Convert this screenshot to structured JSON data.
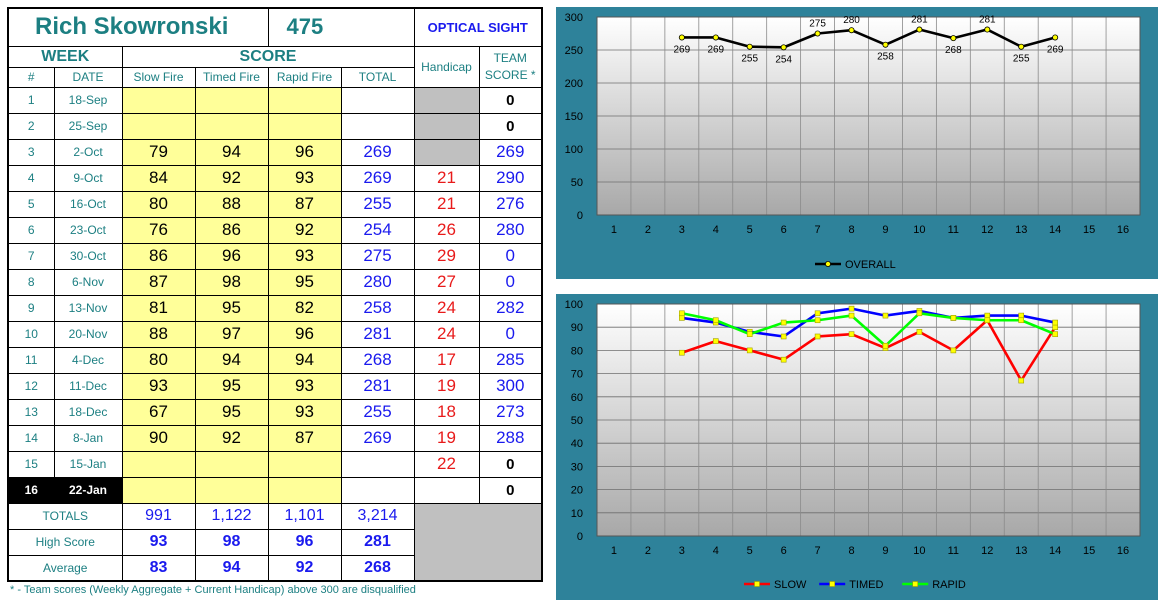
{
  "header": {
    "name": "Rich Skowronski",
    "score": "475",
    "sight": "OPTICAL SIGHT",
    "week": "WEEK",
    "score_label": "SCORE",
    "handicap": "Handicap",
    "team_score_l1": "TEAM",
    "team_score_l2": "SCORE *",
    "col_num": "#",
    "col_date": "DATE",
    "col_slow": "Slow Fire",
    "col_timed": "Timed Fire",
    "col_rapid": "Rapid Fire",
    "col_total": "TOTAL"
  },
  "rows": [
    {
      "n": "1",
      "date": "18-Sep",
      "slow": "",
      "timed": "",
      "rapid": "",
      "total": "",
      "hcp": "",
      "team": "0"
    },
    {
      "n": "2",
      "date": "25-Sep",
      "slow": "",
      "timed": "",
      "rapid": "",
      "total": "",
      "hcp": "",
      "team": "0"
    },
    {
      "n": "3",
      "date": "2-Oct",
      "slow": "79",
      "timed": "94",
      "rapid": "96",
      "total": "269",
      "hcp": "",
      "team": "269"
    },
    {
      "n": "4",
      "date": "9-Oct",
      "slow": "84",
      "timed": "92",
      "rapid": "93",
      "total": "269",
      "hcp": "21",
      "team": "290"
    },
    {
      "n": "5",
      "date": "16-Oct",
      "slow": "80",
      "timed": "88",
      "rapid": "87",
      "total": "255",
      "hcp": "21",
      "team": "276"
    },
    {
      "n": "6",
      "date": "23-Oct",
      "slow": "76",
      "timed": "86",
      "rapid": "92",
      "total": "254",
      "hcp": "26",
      "team": "280"
    },
    {
      "n": "7",
      "date": "30-Oct",
      "slow": "86",
      "timed": "96",
      "rapid": "93",
      "total": "275",
      "hcp": "29",
      "team": "0"
    },
    {
      "n": "8",
      "date": "6-Nov",
      "slow": "87",
      "timed": "98",
      "rapid": "95",
      "total": "280",
      "hcp": "27",
      "team": "0"
    },
    {
      "n": "9",
      "date": "13-Nov",
      "slow": "81",
      "timed": "95",
      "rapid": "82",
      "total": "258",
      "hcp": "24",
      "team": "282"
    },
    {
      "n": "10",
      "date": "20-Nov",
      "slow": "88",
      "timed": "97",
      "rapid": "96",
      "total": "281",
      "hcp": "24",
      "team": "0"
    },
    {
      "n": "11",
      "date": "4-Dec",
      "slow": "80",
      "timed": "94",
      "rapid": "94",
      "total": "268",
      "hcp": "17",
      "team": "285"
    },
    {
      "n": "12",
      "date": "11-Dec",
      "slow": "93",
      "timed": "95",
      "rapid": "93",
      "total": "281",
      "hcp": "19",
      "team": "300"
    },
    {
      "n": "13",
      "date": "18-Dec",
      "slow": "67",
      "timed": "95",
      "rapid": "93",
      "total": "255",
      "hcp": "18",
      "team": "273"
    },
    {
      "n": "14",
      "date": "8-Jan",
      "slow": "90",
      "timed": "92",
      "rapid": "87",
      "total": "269",
      "hcp": "19",
      "team": "288"
    },
    {
      "n": "15",
      "date": "15-Jan",
      "slow": "",
      "timed": "",
      "rapid": "",
      "total": "",
      "hcp": "22",
      "team": "0"
    },
    {
      "n": "16",
      "date": "22-Jan",
      "slow": "",
      "timed": "",
      "rapid": "",
      "total": "",
      "hcp": "",
      "team": "0"
    }
  ],
  "totals": {
    "label": "TOTALS",
    "slow": "991",
    "timed": "1,122",
    "rapid": "1,101",
    "total": "3,214"
  },
  "high": {
    "label": "High Score",
    "slow": "93",
    "timed": "98",
    "rapid": "96",
    "total": "281"
  },
  "average": {
    "label": "Average",
    "slow": "83",
    "timed": "94",
    "rapid": "92",
    "total": "268"
  },
  "footnote": "* - Team scores (Weekly Aggregate + Current Handicap) above 300 are disqualified",
  "colors": {
    "panel": "#2e829a",
    "teal": "#1c7f82",
    "blue": "#1a1aee",
    "red": "#e81a1a",
    "yellow_fill": "#ffff99",
    "gray_fill": "#c0c0c0",
    "series_overall": "#000000",
    "series_slow": "#ff0000",
    "series_timed": "#0000ff",
    "series_rapid": "#00ff00",
    "marker": "#ffff00"
  },
  "chart_data": [
    {
      "type": "line",
      "x_categories": [
        "1",
        "2",
        "3",
        "4",
        "5",
        "6",
        "7",
        "8",
        "9",
        "10",
        "11",
        "12",
        "13",
        "14",
        "15",
        "16"
      ],
      "ylim": [
        0,
        300
      ],
      "yticks": [
        0,
        50,
        100,
        150,
        200,
        250,
        300
      ],
      "grid": true,
      "legend": "bottom",
      "series": [
        {
          "name": "OVERALL",
          "x": [
            3,
            4,
            5,
            6,
            7,
            8,
            9,
            10,
            11,
            12,
            13,
            14
          ],
          "values": [
            269,
            269,
            255,
            254,
            275,
            280,
            258,
            281,
            268,
            281,
            255,
            269
          ],
          "data_labels": true
        }
      ]
    },
    {
      "type": "line",
      "x_categories": [
        "1",
        "2",
        "3",
        "4",
        "5",
        "6",
        "7",
        "8",
        "9",
        "10",
        "11",
        "12",
        "13",
        "14",
        "15",
        "16"
      ],
      "ylim": [
        0,
        100
      ],
      "yticks": [
        0,
        10,
        20,
        30,
        40,
        50,
        60,
        70,
        80,
        90,
        100
      ],
      "grid": true,
      "legend": "bottom",
      "series": [
        {
          "name": "SLOW",
          "x": [
            3,
            4,
            5,
            6,
            7,
            8,
            9,
            10,
            11,
            12,
            13,
            14
          ],
          "values": [
            79,
            84,
            80,
            76,
            86,
            87,
            81,
            88,
            80,
            93,
            67,
            90
          ]
        },
        {
          "name": "TIMED",
          "x": [
            3,
            4,
            5,
            6,
            7,
            8,
            9,
            10,
            11,
            12,
            13,
            14
          ],
          "values": [
            94,
            92,
            88,
            86,
            96,
            98,
            95,
            97,
            94,
            95,
            95,
            92
          ]
        },
        {
          "name": "RAPID",
          "x": [
            3,
            4,
            5,
            6,
            7,
            8,
            9,
            10,
            11,
            12,
            13,
            14
          ],
          "values": [
            96,
            93,
            87,
            92,
            93,
            95,
            82,
            96,
            94,
            93,
            93,
            87
          ]
        }
      ]
    }
  ]
}
